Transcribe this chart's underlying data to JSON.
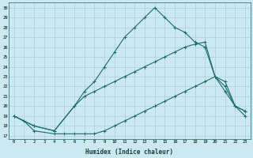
{
  "title": "",
  "xlabel": "Humidex (Indice chaleur)",
  "bg_color": "#cce8f0",
  "grid_color": "#aaccd8",
  "line_color": "#1a6b6b",
  "xlim": [
    -0.5,
    23.5
  ],
  "ylim": [
    16.7,
    30.5
  ],
  "yticks": [
    17,
    18,
    19,
    20,
    21,
    22,
    23,
    24,
    25,
    26,
    27,
    28,
    29,
    30
  ],
  "xticks": [
    0,
    1,
    2,
    3,
    4,
    5,
    6,
    7,
    8,
    9,
    10,
    11,
    12,
    13,
    14,
    15,
    16,
    17,
    18,
    19,
    20,
    21,
    22,
    23
  ],
  "lines": [
    {
      "x": [
        0,
        1,
        2,
        4,
        5,
        6,
        7,
        8,
        9,
        10,
        11,
        12,
        13,
        14,
        15,
        16,
        17,
        18,
        19,
        20,
        21,
        22,
        23
      ],
      "y": [
        19,
        18.5,
        17.5,
        17.2,
        17.2,
        17.2,
        17.2,
        17.2,
        17.5,
        18,
        18.5,
        19,
        19.5,
        20,
        20.5,
        21,
        21.5,
        22,
        22.5,
        23,
        22.5,
        20,
        19
      ]
    },
    {
      "x": [
        0,
        2,
        4,
        6,
        7,
        8,
        9,
        10,
        11,
        12,
        13,
        14,
        15,
        16,
        17,
        18,
        19,
        20,
        21,
        22,
        23
      ],
      "y": [
        19,
        18,
        17.5,
        20,
        21,
        21.5,
        22,
        22.5,
        23,
        23.5,
        24,
        24.5,
        25,
        25.5,
        26,
        26.3,
        26.5,
        23,
        22,
        20,
        19.5
      ]
    },
    {
      "x": [
        0,
        2,
        4,
        6,
        7,
        8,
        9,
        10,
        11,
        12,
        13,
        14,
        15,
        16,
        17,
        18,
        19,
        20,
        21,
        22,
        23
      ],
      "y": [
        19,
        18,
        17.5,
        20,
        21.5,
        22.5,
        24,
        25.5,
        27,
        28,
        29,
        30,
        29,
        28,
        27.5,
        26.5,
        26,
        23,
        21.5,
        20,
        19.5
      ]
    }
  ]
}
